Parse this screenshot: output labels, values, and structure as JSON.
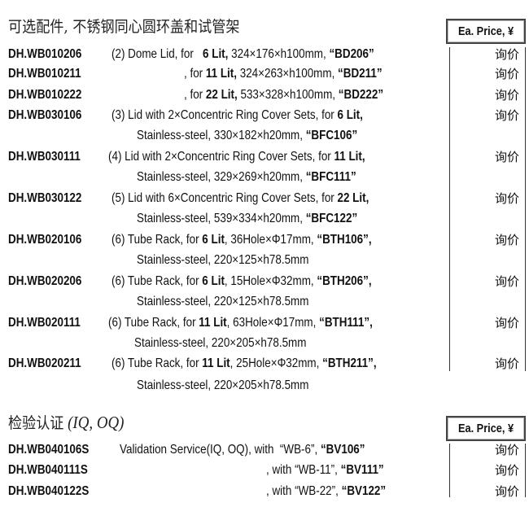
{
  "sections": [
    {
      "title": "可选配件, 不锈钢同心圆环盖和试管架",
      "title_suffix": "",
      "price_header": "Ea.  Price, ¥",
      "items": [
        {
          "code": "DH.WB010206",
          "price": "询价",
          "lines": [
            [
              {
                "t": "(2) Dome Lid, for   "
              },
              {
                "t": "6 Lit,",
                "b": true
              },
              {
                "t": " 324×176×h100mm, "
              },
              {
                "t": "“BD206”",
                "b": true
              }
            ]
          ]
        },
        {
          "code": "DH.WB010211",
          "price": "询价",
          "lines": [
            [
              {
                "t": ", for "
              },
              {
                "t": "11 Lit,",
                "b": true
              },
              {
                "t": " 324×263×h100mm, "
              },
              {
                "t": "“BD211”",
                "b": true
              }
            ]
          ]
        },
        {
          "code": "DH.WB010222",
          "price": "询价",
          "lines": [
            [
              {
                "t": ", for "
              },
              {
                "t": "22 Lit,",
                "b": true
              },
              {
                "t": " 533×328×h100mm, "
              },
              {
                "t": "“BD222”",
                "b": true
              }
            ]
          ]
        },
        {
          "code": "DH.WB030106",
          "price": "询价",
          "lines": [
            [
              {
                "t": "(3) Lid with 2×Concentric Ring Cover Sets, for "
              },
              {
                "t": "6 Lit,",
                "b": true
              }
            ],
            [
              {
                "t": "Stainless-steel, 330×182×h20mm, "
              },
              {
                "t": "“BFC106”",
                "b": true
              }
            ]
          ]
        },
        {
          "code": "DH.WB030111",
          "price": "询价",
          "lines": [
            [
              {
                "t": "(4) Lid with 2×Concentric Ring Cover Sets, for "
              },
              {
                "t": "11 Lit,",
                "b": true
              }
            ],
            [
              {
                "t": "Stainless-steel, 329×269×h20mm, "
              },
              {
                "t": "“BFC111”",
                "b": true
              }
            ]
          ]
        },
        {
          "code": "DH.WB030122",
          "price": "询价",
          "lines": [
            [
              {
                "t": "(5) Lid with 6×Concentric Ring Cover Sets, for "
              },
              {
                "t": "22 Lit,",
                "b": true
              }
            ],
            [
              {
                "t": "Stainless-steel, 539×334×h20mm, "
              },
              {
                "t": "“BFC122”",
                "b": true
              }
            ]
          ]
        },
        {
          "code": "DH.WB020106",
          "price": "询价",
          "lines": [
            [
              {
                "t": "(6) Tube Rack, for "
              },
              {
                "t": "6 Lit",
                "b": true
              },
              {
                "t": ", 36Hole×Φ17mm, "
              },
              {
                "t": "“BTH106”,",
                "b": true
              }
            ],
            [
              {
                "t": "Stainless-steel, 220×125×h78.5mm"
              }
            ]
          ]
        },
        {
          "code": "DH.WB020206",
          "price": "询价",
          "lines": [
            [
              {
                "t": "(6) Tube Rack, for "
              },
              {
                "t": "6 Lit",
                "b": true
              },
              {
                "t": ", 15Hole×Φ32mm, "
              },
              {
                "t": "“BTH206”,",
                "b": true
              }
            ],
            [
              {
                "t": "Stainless-steel, 220×125×h78.5mm"
              }
            ]
          ]
        },
        {
          "code": "DH.WB020111",
          "price": "询价",
          "lines": [
            [
              {
                "t": "(6) Tube Rack, for "
              },
              {
                "t": "11 Lit",
                "b": true
              },
              {
                "t": ", 63Hole×Φ17mm, "
              },
              {
                "t": "“BTH111”,",
                "b": true
              }
            ],
            [
              {
                "t": "Stainless-steel, 220×205×h78.5mm"
              }
            ]
          ]
        },
        {
          "code": "DH.WB020211",
          "price": "询价",
          "lines": [
            [
              {
                "t": "(6) Tube Rack, for "
              },
              {
                "t": "11 Lit",
                "b": true
              },
              {
                "t": ", 25Hole×Φ32mm, "
              },
              {
                "t": "“BTH211”,",
                "b": true
              }
            ],
            [
              {
                "t": "Stainless-steel, 220×205×h78.5mm"
              }
            ]
          ]
        }
      ]
    },
    {
      "title": "检验认证",
      "title_suffix": " (IQ, OQ)",
      "price_header": "Ea.  Price, ¥",
      "items": [
        {
          "code": "DH.WB040106S",
          "price": "询价",
          "lines": [
            [
              {
                "t": "Validation Service(IQ, OQ), with  “WB-6”, "
              },
              {
                "t": "“BV106”",
                "b": true
              }
            ]
          ]
        },
        {
          "code": "DH.WB040111S",
          "price": "询价",
          "lines": [
            [
              {
                "t": ", with “WB-11”, "
              },
              {
                "t": "“BV111”",
                "b": true
              }
            ]
          ]
        },
        {
          "code": "DH.WB040122S",
          "price": "询价",
          "lines": [
            [
              {
                "t": ", with “WB-22”, "
              },
              {
                "t": "“BV122”",
                "b": true
              }
            ]
          ]
        }
      ]
    }
  ]
}
